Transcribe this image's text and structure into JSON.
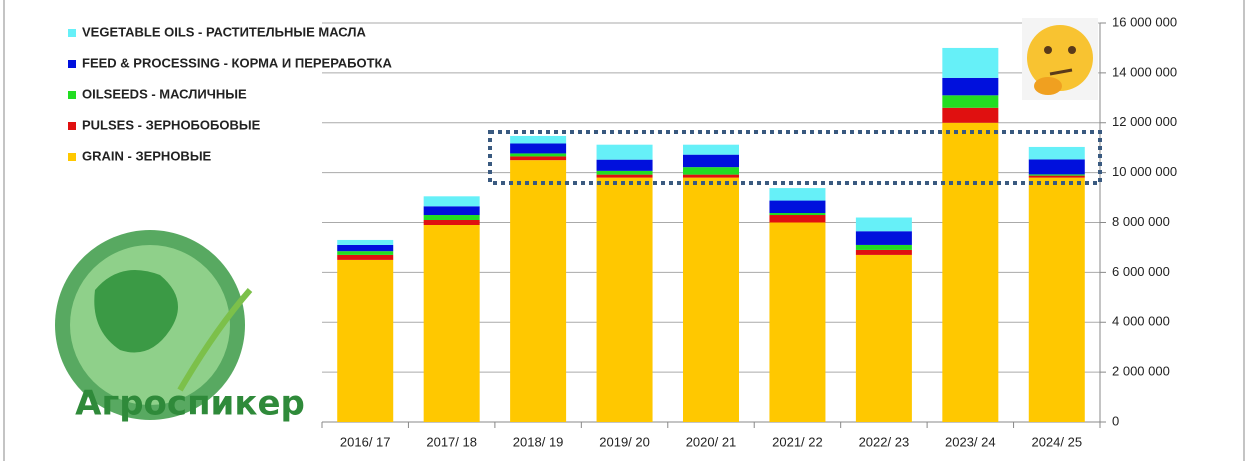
{
  "chart_data": {
    "type": "stacked_bar",
    "logo_text": "Агроспикер",
    "categories": [
      "2016/ 17",
      "2017/ 18",
      "2018/ 19",
      "2019/ 20",
      "2020/ 21",
      "2021/ 22",
      "2022/ 23",
      "2023/ 24",
      "2024/ 25"
    ],
    "series": [
      {
        "name": "GRAIN  - ЗЕРНОВЫЕ",
        "color": "#ffc800",
        "values": [
          6500000,
          7900000,
          10500000,
          9800000,
          9800000,
          8000000,
          6700000,
          12000000,
          9800000
        ]
      },
      {
        "name": "PULSES - ЗЕРНОБОБОВЫЕ",
        "color": "#e01010",
        "values": [
          200000,
          200000,
          150000,
          120000,
          120000,
          300000,
          200000,
          600000,
          80000
        ]
      },
      {
        "name": "OILSEEDS - МАСЛИЧНЫЕ",
        "color": "#22dd22",
        "values": [
          150000,
          200000,
          120000,
          150000,
          300000,
          80000,
          200000,
          500000,
          50000
        ]
      },
      {
        "name": "FEED & PROCESSING  - КОРМА И ПЕРЕРАБОТКА",
        "color": "#0010dd",
        "values": [
          250000,
          350000,
          400000,
          450000,
          500000,
          500000,
          550000,
          700000,
          600000
        ]
      },
      {
        "name": "VEGETABLE  OILS - РАСТИТЕЛЬНЫЕ  МАСЛА",
        "color": "#66f0f8",
        "values": [
          200000,
          400000,
          300000,
          600000,
          400000,
          500000,
          550000,
          1200000,
          500000
        ]
      }
    ],
    "ylim": [
      0,
      16000000
    ],
    "yticks": [
      0,
      {
        "value": 2000000,
        "label": "2 000 000"
      },
      {
        "value": 4000000,
        "label": "4 000 000"
      },
      {
        "value": 6000000,
        "label": "6 000 000"
      },
      {
        "value": 8000000,
        "label": "8 000 000"
      },
      {
        "value": 10000000,
        "label": "10 000 000"
      },
      {
        "value": 12000000,
        "label": "12 000 000"
      },
      {
        "value": 14000000,
        "label": "14 000 000"
      },
      {
        "value": 16000000,
        "label": "16 000 000"
      }
    ],
    "grid": true
  }
}
